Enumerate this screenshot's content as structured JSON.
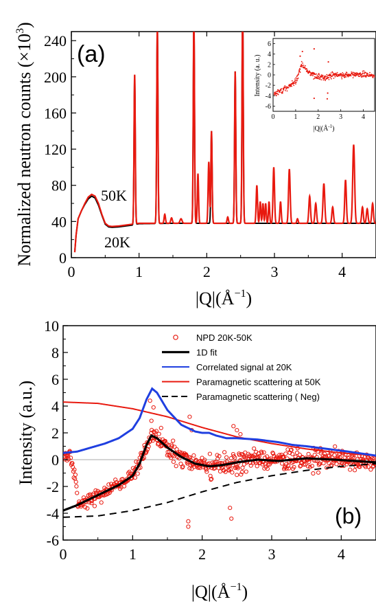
{
  "chart_data": [
    {
      "panel": "a",
      "panel_label": "(a)",
      "type": "line",
      "ylabel": "Normalized neutron counts (×10",
      "ylabel_sup": "3",
      "ylabel_tail": ")",
      "xlabel_pre": "|Q|(Å",
      "xlabel_sup": "−1",
      "xlabel_post": ")",
      "xlim": [
        0,
        4.5
      ],
      "ylim": [
        0,
        250
      ],
      "xticks": [
        "0",
        "1",
        "2",
        "3",
        "4"
      ],
      "yticks": [
        "0",
        "40",
        "80",
        "120",
        "160",
        "200",
        "240"
      ],
      "annotations": [
        {
          "text": "50K"
        },
        {
          "text": "20K"
        }
      ],
      "colors": {
        "red": "#e8190f",
        "black": "#000000"
      },
      "series": [
        {
          "label": "50K",
          "color": "#e8190f",
          "baseline": [
            [
              0.05,
              6
            ],
            [
              0.07,
              25
            ],
            [
              0.1,
              43
            ],
            [
              0.15,
              52
            ],
            [
              0.2,
              60
            ],
            [
              0.25,
              67
            ],
            [
              0.3,
              70
            ],
            [
              0.35,
              68
            ],
            [
              0.4,
              60
            ],
            [
              0.45,
              48
            ],
            [
              0.5,
              38
            ],
            [
              0.55,
              35
            ],
            [
              0.6,
              34.5
            ],
            [
              0.7,
              35
            ],
            [
              0.8,
              36
            ],
            [
              0.9,
              37
            ],
            [
              1.0,
              38
            ],
            [
              1.5,
              38
            ],
            [
              2.0,
              38
            ],
            [
              2.5,
              38
            ],
            [
              3.0,
              38
            ],
            [
              3.5,
              38
            ],
            [
              4.0,
              38
            ],
            [
              4.5,
              38
            ]
          ],
          "peaks": [
            [
              0.935,
              165,
              0.009
            ],
            [
              1.27,
              218,
              0.009
            ],
            [
              1.38,
              10,
              0.01
            ],
            [
              1.48,
              6,
              0.012
            ],
            [
              1.62,
              5,
              0.015
            ],
            [
              1.81,
              230,
              0.009
            ],
            [
              1.87,
              55,
              0.009
            ],
            [
              2.03,
              68,
              0.01
            ],
            [
              2.07,
              102,
              0.009
            ],
            [
              2.31,
              7,
              0.01
            ],
            [
              2.42,
              168,
              0.009
            ],
            [
              2.53,
              240,
              0.009
            ],
            [
              2.74,
              42,
              0.01
            ],
            [
              2.79,
              24,
              0.009
            ],
            [
              2.83,
              22,
              0.009
            ],
            [
              2.87,
              22,
              0.009
            ],
            [
              2.92,
              24,
              0.009
            ],
            [
              2.99,
              62,
              0.011
            ],
            [
              3.09,
              24,
              0.01
            ],
            [
              3.22,
              60,
              0.012
            ],
            [
              3.34,
              5,
              0.01
            ],
            [
              3.52,
              30,
              0.012
            ],
            [
              3.61,
              22,
              0.012
            ],
            [
              3.73,
              44,
              0.013
            ],
            [
              3.86,
              18,
              0.012
            ],
            [
              4.05,
              48,
              0.012
            ],
            [
              4.17,
              87,
              0.014
            ],
            [
              4.3,
              18,
              0.012
            ],
            [
              4.37,
              16,
              0.012
            ],
            [
              4.45,
              22,
              0.012
            ]
          ]
        },
        {
          "label": "20K",
          "color": "#000000",
          "baseline": [
            [
              0.05,
              6
            ],
            [
              0.07,
              25
            ],
            [
              0.1,
              43
            ],
            [
              0.15,
              52
            ],
            [
              0.2,
              59
            ],
            [
              0.25,
              65
            ],
            [
              0.3,
              68
            ],
            [
              0.35,
              66
            ],
            [
              0.4,
              58
            ],
            [
              0.45,
              47
            ],
            [
              0.5,
              37
            ],
            [
              0.55,
              34
            ],
            [
              0.6,
              33.5
            ],
            [
              0.7,
              34
            ],
            [
              0.8,
              35
            ],
            [
              0.9,
              36
            ],
            [
              1.0,
              37.5
            ],
            [
              1.5,
              38
            ],
            [
              2.0,
              38
            ],
            [
              2.5,
              38
            ],
            [
              3.0,
              38
            ],
            [
              3.5,
              38
            ],
            [
              4.0,
              38
            ],
            [
              4.5,
              38
            ]
          ],
          "peaks": [
            [
              0.935,
              165,
              0.009
            ],
            [
              1.27,
              220,
              0.009
            ],
            [
              1.81,
              230,
              0.009
            ],
            [
              2.07,
              102,
              0.009
            ],
            [
              2.42,
              168,
              0.009
            ],
            [
              2.53,
              240,
              0.009
            ]
          ]
        }
      ],
      "inset": {
        "ylabel": "Intensity (a. u.)",
        "xlabel": "|Q|(Å",
        "xlabel_sup": "-1",
        "xlabel_post": ")",
        "xlim": [
          0,
          4.5
        ],
        "ylim": [
          -7,
          7
        ],
        "xticks": [
          "0",
          "1",
          "2",
          "3",
          "4"
        ],
        "yticks": [
          "-6",
          "-4",
          "-2",
          "0",
          "2",
          "4",
          "6"
        ]
      }
    },
    {
      "panel": "b",
      "panel_label": "(b)",
      "type": "line",
      "ylabel": "Intensity (a.u.)",
      "xlabel_pre": "|Q|(Å",
      "xlabel_sup": "−1",
      "xlabel_post": ")",
      "xlim": [
        0,
        4.5
      ],
      "ylim": [
        -6,
        10
      ],
      "xticks": [
        "0",
        "1",
        "2",
        "3",
        "4"
      ],
      "yticks": [
        "-6",
        "-4",
        "-2",
        "0",
        "2",
        "4",
        "6",
        "8",
        "10"
      ],
      "legend": [
        {
          "label": "NPD 20K-50K",
          "color": "#e8190f",
          "style": "circle"
        },
        {
          "label": "1D fit",
          "color": "#000000",
          "style": "thick"
        },
        {
          "label": "Correlated signal at 20K",
          "color": "#1f3fe0",
          "style": "line"
        },
        {
          "label": "Paramagnetic scattering at 50K",
          "color": "#e8190f",
          "style": "line"
        },
        {
          "label": "Paramagnetic scattering ( Neg)",
          "color": "#000000",
          "style": "dashed"
        }
      ],
      "series": [
        {
          "label": "1D fit",
          "color": "#000000",
          "points": [
            [
              0,
              -3.8
            ],
            [
              0.2,
              -3.4
            ],
            [
              0.4,
              -2.9
            ],
            [
              0.6,
              -2.4
            ],
            [
              0.8,
              -1.9
            ],
            [
              1.0,
              -1.2
            ],
            [
              1.1,
              -0.3
            ],
            [
              1.2,
              1.1
            ],
            [
              1.27,
              1.8
            ],
            [
              1.35,
              1.6
            ],
            [
              1.5,
              0.9
            ],
            [
              1.7,
              0.2
            ],
            [
              1.9,
              -0.3
            ],
            [
              2.1,
              -0.5
            ],
            [
              2.3,
              -0.4
            ],
            [
              2.5,
              -0.2
            ],
            [
              2.8,
              0.0
            ],
            [
              3.1,
              -0.1
            ],
            [
              3.5,
              0.1
            ],
            [
              3.9,
              0.0
            ],
            [
              4.2,
              -0.1
            ],
            [
              4.5,
              -0.2
            ]
          ]
        },
        {
          "label": "Correlated signal at 20K",
          "color": "#1f3fe0",
          "points": [
            [
              0,
              0.5
            ],
            [
              0.2,
              0.6
            ],
            [
              0.4,
              0.9
            ],
            [
              0.6,
              1.2
            ],
            [
              0.8,
              1.6
            ],
            [
              1.0,
              2.3
            ],
            [
              1.1,
              3.1
            ],
            [
              1.2,
              4.5
            ],
            [
              1.28,
              5.3
            ],
            [
              1.35,
              5.0
            ],
            [
              1.5,
              3.7
            ],
            [
              1.7,
              2.6
            ],
            [
              1.9,
              2.1
            ],
            [
              2.0,
              2.0
            ],
            [
              2.1,
              2.0
            ],
            [
              2.2,
              1.8
            ],
            [
              2.35,
              1.6
            ],
            [
              2.5,
              1.6
            ],
            [
              2.8,
              1.5
            ],
            [
              3.1,
              1.3
            ],
            [
              3.3,
              1.1
            ],
            [
              3.5,
              1.0
            ],
            [
              3.8,
              0.8
            ],
            [
              4.1,
              0.6
            ],
            [
              4.5,
              0.3
            ]
          ]
        },
        {
          "label": "Paramagnetic scattering at 50K",
          "color": "#e8190f",
          "points": [
            [
              0,
              4.3
            ],
            [
              0.5,
              4.2
            ],
            [
              1.0,
              3.8
            ],
            [
              1.5,
              3.2
            ],
            [
              2.0,
              2.4
            ],
            [
              2.5,
              1.7
            ],
            [
              3.0,
              1.2
            ],
            [
              3.5,
              0.8
            ],
            [
              4.0,
              0.5
            ],
            [
              4.5,
              0.3
            ]
          ]
        },
        {
          "label": "Paramagnetic scattering ( Neg)",
          "color": "#000000",
          "dashed": true,
          "points": [
            [
              0,
              -4.3
            ],
            [
              0.5,
              -4.2
            ],
            [
              1.0,
              -3.8
            ],
            [
              1.5,
              -3.2
            ],
            [
              2.0,
              -2.4
            ],
            [
              2.5,
              -1.7
            ],
            [
              3.0,
              -1.2
            ],
            [
              3.5,
              -0.8
            ],
            [
              4.0,
              -0.5
            ],
            [
              4.5,
              -0.3
            ]
          ]
        }
      ],
      "scatter": {
        "label": "NPD 20K-50K",
        "color": "#e8190f",
        "count": 600,
        "noise_low_q": 0.35,
        "noise_high_q": 0.55,
        "outliers": [
          [
            1.25,
            4.4
          ],
          [
            1.3,
            3.9
          ],
          [
            1.8,
            -4.6
          ],
          [
            1.8,
            -5.0
          ],
          [
            1.82,
            3.2
          ],
          [
            1.85,
            2.2
          ],
          [
            2.4,
            -3.6
          ],
          [
            2.42,
            -4.4
          ],
          [
            2.45,
            2.5
          ],
          [
            2.5,
            2.2
          ],
          [
            1.27,
            2.9
          ],
          [
            2.55,
            1.9
          ]
        ]
      }
    }
  ]
}
